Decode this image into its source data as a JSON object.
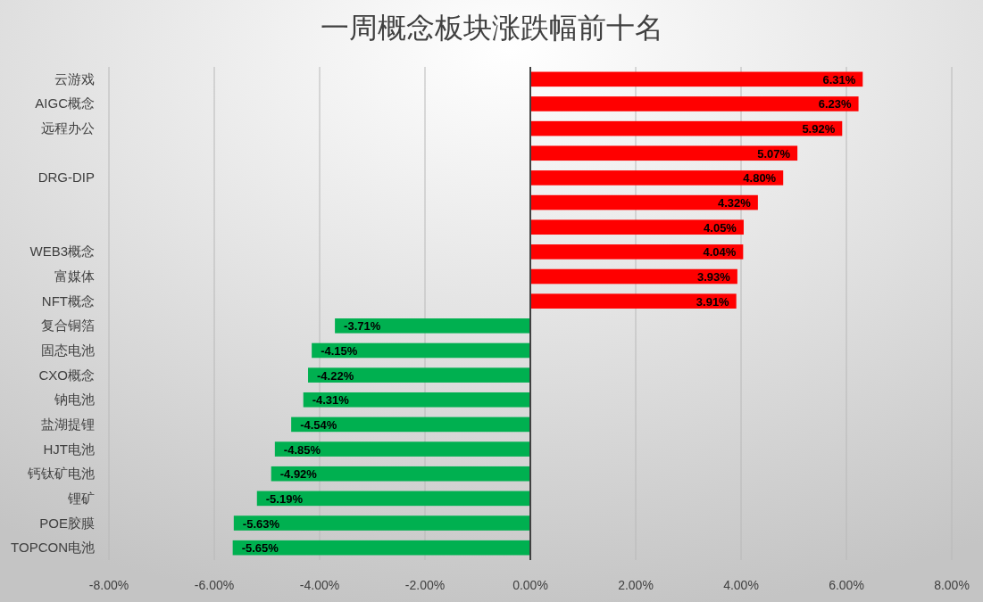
{
  "chart_data": {
    "type": "bar",
    "orientation": "horizontal",
    "title": "一周概念板块涨跌幅前十名",
    "categories": [
      "云游戏",
      "AIGC概念",
      "远程办公",
      null,
      "DRG-DIP",
      null,
      null,
      "WEB3概念",
      "富媒体",
      "NFT概念",
      "复合铜箔",
      "固态电池",
      "CXO概念",
      "钠电池",
      "盐湖提锂",
      "HJT电池",
      "钙钛矿电池",
      "锂矿",
      "POE胶膜",
      "TOPCON电池"
    ],
    "values": [
      6.31,
      6.23,
      5.92,
      5.07,
      4.8,
      4.32,
      4.05,
      4.04,
      3.93,
      3.91,
      -3.71,
      -4.15,
      -4.22,
      -4.31,
      -4.54,
      -4.85,
      -4.92,
      -5.19,
      -5.63,
      -5.65
    ],
    "value_labels": [
      "6.31%",
      "6.23%",
      "5.92%",
      "5.07%",
      "4.80%",
      "4.32%",
      "4.05%",
      "4.04%",
      "3.93%",
      "3.91%",
      "-3.71%",
      "-4.15%",
      "-4.22%",
      "-4.31%",
      "-4.54%",
      "-4.85%",
      "-4.92%",
      "-5.19%",
      "-5.63%",
      "-5.65%"
    ],
    "colors": [
      "#ff0000",
      "#ff0000",
      "#ff0000",
      "#ff0000",
      "#ff0000",
      "#ff0000",
      "#ff0000",
      "#ff0000",
      "#ff0000",
      "#ff0000",
      "#00b050",
      "#00b050",
      "#00b050",
      "#00b050",
      "#00b050",
      "#00b050",
      "#00b050",
      "#00b050",
      "#00b050",
      "#00b050"
    ],
    "xlim": [
      -8,
      8
    ],
    "xticks": [
      {
        "value": -8,
        "label": "-8.00%"
      },
      {
        "value": -6,
        "label": "-6.00%"
      },
      {
        "value": -4,
        "label": "-4.00%"
      },
      {
        "value": -2,
        "label": "-2.00%"
      },
      {
        "value": 0,
        "label": "0.00%"
      },
      {
        "value": 2,
        "label": "2.00%"
      },
      {
        "value": 4,
        "label": "4.00%"
      },
      {
        "value": 6,
        "label": "6.00%"
      },
      {
        "value": 8,
        "label": "8.00%"
      }
    ],
    "grid": "x"
  }
}
